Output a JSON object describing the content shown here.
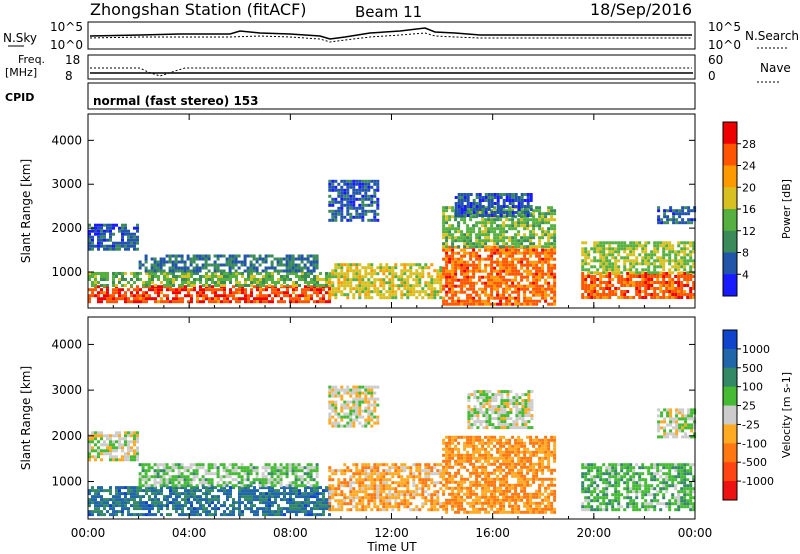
{
  "header": {
    "station_title": "Zhongshan Station (fitACF)",
    "beam_label": "Beam 11",
    "date": "18/Sep/2016"
  },
  "top_panels": {
    "nsky_label": "N.Sky",
    "nsky_ticks": [
      "10^5",
      "10^0"
    ],
    "nsearch_label": "N.Search",
    "nsearch_ticks": [
      "10^5",
      "10^0"
    ],
    "freq_label_1": "Freq.",
    "freq_label_2": "[MHz]",
    "freq_ticks": [
      "18",
      "8"
    ],
    "nave_label": "Nave",
    "nave_ticks": [
      "60",
      "0"
    ],
    "cpid_label": "CPID",
    "cpid_text": "normal (fast stereo) 153"
  },
  "colors": {
    "power": [
      "#1a1aff",
      "#2255aa",
      "#3a8a5a",
      "#55b040",
      "#d8c020",
      "#ff9900",
      "#ff5500",
      "#ee0000"
    ],
    "velocity": [
      "#1144cc",
      "#2266aa",
      "#338866",
      "#44bb33",
      "#cccccc",
      "#ffaa22",
      "#ff7711",
      "#ff4411",
      "#ee1111"
    ]
  },
  "chart_data": [
    {
      "type": "heatmap",
      "quantity": "Power",
      "ylabel": "Slant Range [km]",
      "colorbar_label": "Power [dB]",
      "ylim": [
        180,
        4600
      ],
      "yticks": [
        1000,
        2000,
        3000,
        4000
      ],
      "colorbar_ticks": [
        "4",
        "8",
        "12",
        "16",
        "20",
        "24",
        "28"
      ],
      "colorbar_range": [
        0,
        32
      ],
      "regions": [
        {
          "t0": 0.0,
          "t1": 9.5,
          "r0": 300,
          "r1": 700,
          "value": 27
        },
        {
          "t0": 0.0,
          "t1": 9.5,
          "r0": 700,
          "r1": 1000,
          "value": 14
        },
        {
          "t0": 0.0,
          "t1": 2.0,
          "r0": 1500,
          "r1": 2100,
          "value": 6
        },
        {
          "t0": 2.0,
          "t1": 9.0,
          "r0": 1000,
          "r1": 1400,
          "value": 8
        },
        {
          "t0": 9.5,
          "t1": 14.0,
          "r0": 400,
          "r1": 1200,
          "value": 18
        },
        {
          "t0": 9.5,
          "t1": 11.5,
          "r0": 2200,
          "r1": 3100,
          "value": 6
        },
        {
          "t0": 14.0,
          "t1": 18.5,
          "r0": 300,
          "r1": 1600,
          "value": 25
        },
        {
          "t0": 14.0,
          "t1": 18.5,
          "r0": 1600,
          "r1": 2500,
          "value": 14
        },
        {
          "t0": 14.5,
          "t1": 17.5,
          "r0": 2300,
          "r1": 2800,
          "value": 6
        },
        {
          "t0": 19.5,
          "t1": 24.0,
          "r0": 400,
          "r1": 1000,
          "value": 26
        },
        {
          "t0": 19.5,
          "t1": 24.0,
          "r0": 1000,
          "r1": 1700,
          "value": 16
        },
        {
          "t0": 22.5,
          "t1": 24.0,
          "r0": 2100,
          "r1": 2500,
          "value": 6
        }
      ]
    },
    {
      "type": "heatmap",
      "quantity": "Velocity",
      "ylabel": "Slant Range [km]",
      "colorbar_label": "Velocity [m s-1]",
      "ylim": [
        180,
        4600
      ],
      "yticks": [
        1000,
        2000,
        3000,
        4000
      ],
      "colorbar_ticks": [
        "1000",
        "500",
        "100",
        "25",
        "-25",
        "-100",
        "-500",
        "-1000"
      ],
      "colorbar_range": [
        -1200,
        1200
      ],
      "regions": [
        {
          "t0": 0.0,
          "t1": 9.5,
          "r0": 300,
          "r1": 900,
          "value": 700
        },
        {
          "t0": 0.0,
          "t1": 2.0,
          "r0": 1500,
          "r1": 2100,
          "value": 0
        },
        {
          "t0": 2.0,
          "t1": 9.0,
          "r0": 900,
          "r1": 1400,
          "value": 200
        },
        {
          "t0": 9.5,
          "t1": 14.0,
          "r0": 400,
          "r1": 1400,
          "value": -300
        },
        {
          "t0": 9.5,
          "t1": 11.5,
          "r0": 2200,
          "r1": 3100,
          "value": 0
        },
        {
          "t0": 14.0,
          "t1": 18.5,
          "r0": 300,
          "r1": 2000,
          "value": -400
        },
        {
          "t0": 15.0,
          "t1": 17.5,
          "r0": 2200,
          "r1": 3000,
          "value": 50
        },
        {
          "t0": 19.5,
          "t1": 24.0,
          "r0": 400,
          "r1": 1400,
          "value": 300
        },
        {
          "t0": 22.5,
          "t1": 24.0,
          "r0": 2000,
          "r1": 2600,
          "value": 40
        }
      ]
    }
  ],
  "x_axis": {
    "ticks": [
      "00:00",
      "04:00",
      "08:00",
      "12:00",
      "16:00",
      "20:00",
      "00:00"
    ],
    "label": "Time UT",
    "range_hours": [
      0,
      24
    ]
  }
}
